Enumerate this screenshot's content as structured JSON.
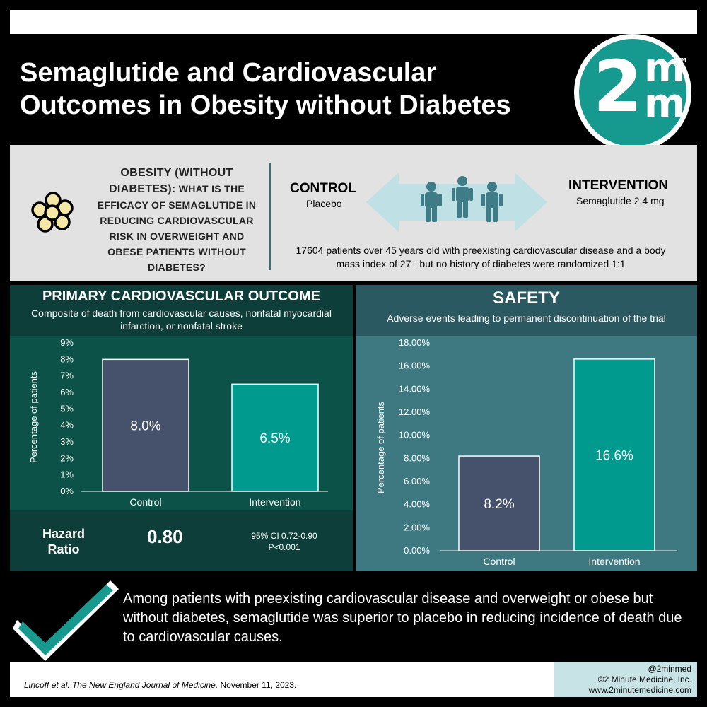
{
  "title": "Semaglutide and Cardiovascular\nOutcomes in Obesity without Diabetes",
  "logo": {
    "two": "2",
    "m_top": "m",
    "m_bottom": "m",
    "tm": "TM"
  },
  "colors": {
    "teal": "#009b8e",
    "slate": "#46516b",
    "dark_green": "#0c5249",
    "light_teal": "#3e7982",
    "logo_teal": "#16998f"
  },
  "study": {
    "icon": "cell-cluster-icon",
    "question_head": "OBESITY (WITHOUT DIABETES):",
    "question_body": "WHAT IS THE EFFICACY OF SEMAGLUTIDE IN REDUCING CARDIOVASCULAR RISK IN OVERWEIGHT AND OBESE PATIENTS WITHOUT DIABETES?",
    "control_label": "CONTROL",
    "control_sub": "Placebo",
    "intervention_label": "INTERVENTION",
    "intervention_sub": "Semaglutide 2.4 mg",
    "description": "17604 patients over 45 years old with preexisting cardiovascular disease and a body mass index of 27+ but no history of diabetes were randomized 1:1"
  },
  "primary": {
    "title": "PRIMARY CARDIOVASCULAR OUTCOME",
    "subtitle": "Composite of death from cardiovascular causes, nonfatal myocardial infarction, or nonfatal stroke",
    "hr_label": "Hazard Ratio",
    "hr_value": "0.80",
    "ci": "95% CI 0.72-0.90",
    "p": "P<0.001"
  },
  "safety": {
    "title": "SAFETY",
    "subtitle": "Adverse events leading to permanent discontinuation of the trial"
  },
  "chart_data": [
    {
      "type": "bar",
      "categories": [
        "Control",
        "Intervention"
      ],
      "values": [
        8.0,
        6.5
      ],
      "data_labels": [
        "8.0%",
        "6.5%"
      ],
      "ylabel": "Percentage of patients",
      "ylim": [
        0,
        9
      ],
      "yticks": [
        "0%",
        "1%",
        "2%",
        "3%",
        "4%",
        "5%",
        "6%",
        "7%",
        "8%",
        "9%"
      ],
      "bar_colors": [
        "#46516b",
        "#009b8e"
      ]
    },
    {
      "type": "bar",
      "categories": [
        "Control",
        "Intervention"
      ],
      "values": [
        8.2,
        16.6
      ],
      "data_labels": [
        "8.2%",
        "16.6%"
      ],
      "ylabel": "Percentage of patients",
      "ylim": [
        0,
        18
      ],
      "yticks": [
        "0.00%",
        "2.00%",
        "4.00%",
        "6.00%",
        "8.00%",
        "10.00%",
        "12.00%",
        "14.00%",
        "16.00%",
        "18.00%"
      ],
      "bar_colors": [
        "#46516b",
        "#009b8e"
      ]
    }
  ],
  "conclusion": "Among patients with preexisting cardiovascular disease and overweight or obese but without diabetes, semaglutide was superior to placebo in reducing incidence of death due to cardiovascular causes.",
  "citation": {
    "authors": "Lincoff et al. ",
    "journal": "The New England Journal of Medicine.",
    "date": " November 11, 2023."
  },
  "credit": {
    "handle": "@2minmed",
    "copyright": "©2 Minute Medicine, Inc.",
    "url": "www.2minutemedicine.com"
  }
}
